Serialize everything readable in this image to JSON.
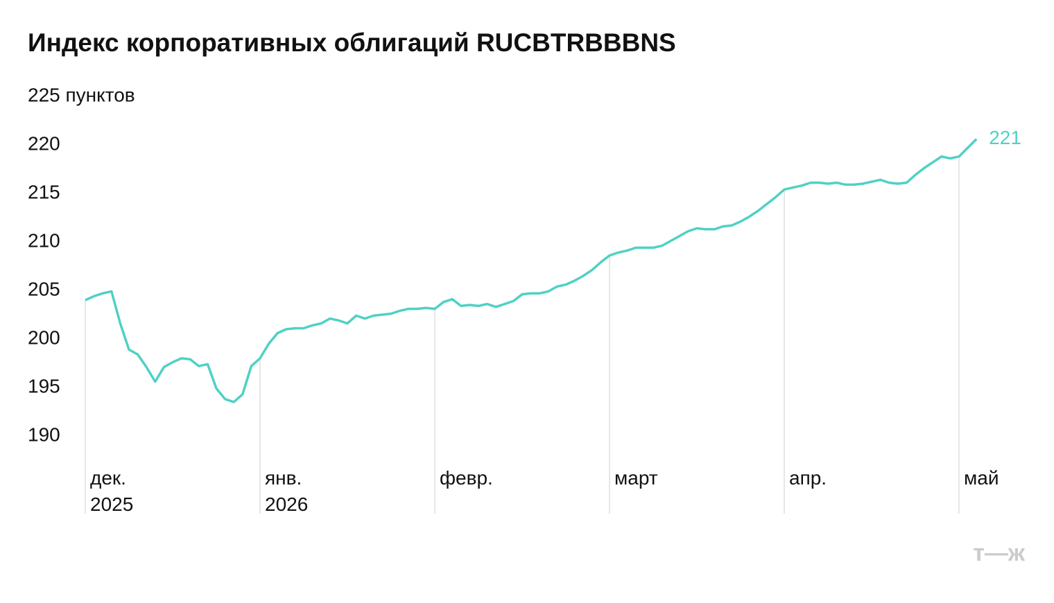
{
  "chart_data": {
    "type": "area",
    "title": "Индекс корпоративных облигаций RUCBTRBBBNS",
    "categories": [
      "дек. 2025",
      null,
      null,
      null,
      null,
      null,
      null,
      null,
      null,
      null,
      null,
      null,
      null,
      null,
      null,
      null,
      null,
      null,
      null,
      null,
      "янв. 2026",
      null,
      null,
      null,
      null,
      null,
      null,
      null,
      null,
      null,
      null,
      null,
      null,
      null,
      null,
      null,
      null,
      null,
      null,
      null,
      "февр.",
      null,
      null,
      null,
      null,
      null,
      null,
      null,
      null,
      null,
      null,
      null,
      null,
      null,
      null,
      null,
      null,
      null,
      null,
      null,
      "март",
      null,
      null,
      null,
      null,
      null,
      null,
      null,
      null,
      null,
      null,
      null,
      null,
      null,
      null,
      null,
      null,
      null,
      null,
      null,
      "апр.",
      null,
      null,
      null,
      null,
      null,
      null,
      null,
      null,
      null,
      null,
      null,
      null,
      null,
      null,
      null,
      null,
      null,
      null,
      null,
      "май",
      null,
      null
    ],
    "values": [
      204.0,
      204.4,
      204.7,
      204.9,
      201.6,
      198.9,
      198.4,
      197.1,
      195.6,
      197.1,
      197.6,
      198.0,
      197.9,
      197.2,
      197.4,
      194.9,
      193.8,
      193.5,
      194.3,
      197.2,
      198.0,
      199.5,
      200.6,
      201.0,
      201.1,
      201.1,
      201.4,
      201.6,
      202.1,
      201.9,
      201.6,
      202.4,
      202.1,
      202.4,
      202.5,
      202.6,
      202.9,
      203.1,
      203.1,
      203.2,
      203.1,
      203.8,
      204.1,
      203.4,
      203.5,
      203.4,
      203.6,
      203.3,
      203.6,
      203.9,
      204.6,
      204.7,
      204.7,
      204.9,
      205.4,
      205.6,
      206.0,
      206.5,
      207.1,
      207.9,
      208.6,
      208.9,
      209.1,
      209.4,
      209.4,
      209.4,
      209.6,
      210.1,
      210.6,
      211.1,
      211.4,
      211.3,
      211.3,
      211.6,
      211.7,
      212.1,
      212.6,
      213.2,
      213.9,
      214.6,
      215.4,
      215.6,
      215.8,
      216.1,
      216.1,
      216.0,
      216.1,
      215.9,
      215.9,
      216.0,
      216.2,
      216.4,
      216.1,
      216.0,
      216.1,
      216.9,
      217.6,
      218.2,
      218.8,
      218.6,
      218.8,
      219.7,
      220.6
    ],
    "value_labels": [
      null,
      null,
      null,
      null,
      null,
      null,
      null,
      null,
      null,
      null,
      null,
      null,
      null,
      null,
      null,
      null,
      null,
      null,
      null,
      null,
      null,
      null,
      null,
      null,
      null,
      null,
      null,
      null,
      null,
      null,
      null,
      null,
      null,
      null,
      null,
      null,
      null,
      null,
      null,
      null,
      null,
      null,
      null,
      null,
      null,
      null,
      null,
      null,
      null,
      null,
      null,
      null,
      null,
      null,
      null,
      null,
      null,
      null,
      null,
      null,
      null,
      null,
      null,
      null,
      null,
      null,
      null,
      null,
      null,
      null,
      null,
      null,
      null,
      null,
      null,
      null,
      null,
      null,
      null,
      null,
      null,
      null,
      null,
      null,
      null,
      null,
      null,
      null,
      null,
      null,
      null,
      null,
      null,
      null,
      null,
      null,
      null,
      null,
      null,
      null,
      null,
      null,
      "221"
    ],
    "color": "#4fd1c4",
    "ylim": [
      182,
      225
    ],
    "yticks": [
      190,
      195,
      200,
      205,
      210,
      215,
      220,
      {
        "value": 225,
        "label": "225 пунктов"
      }
    ],
    "grid": false
  },
  "logo": "т—ж"
}
